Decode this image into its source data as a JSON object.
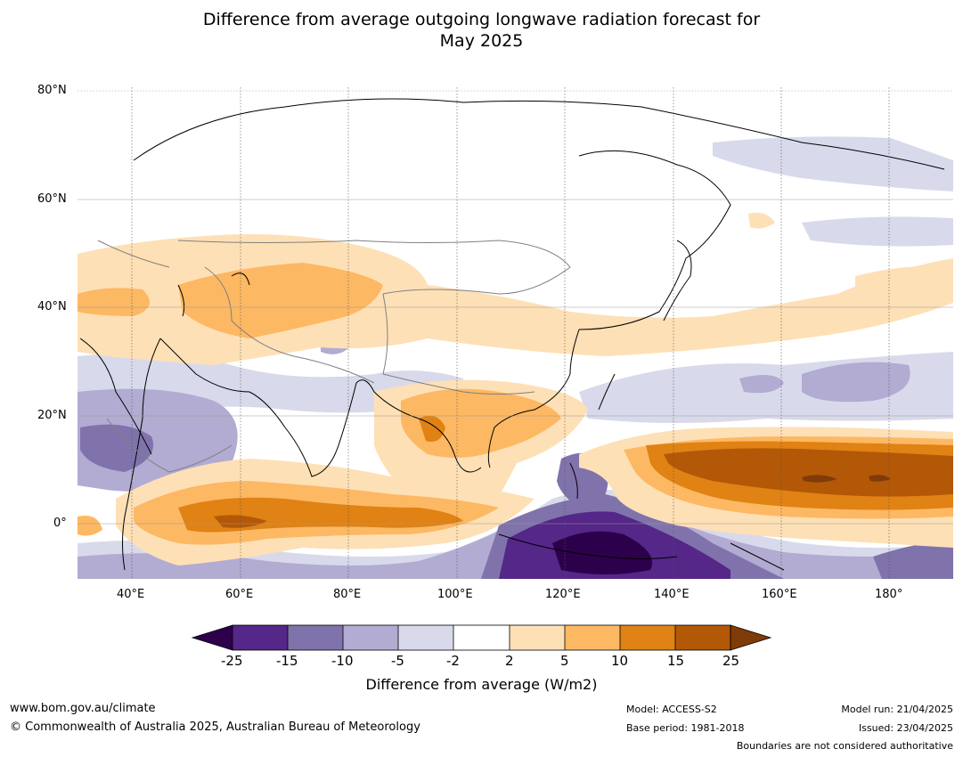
{
  "title_line1": "Difference from average outgoing longwave radiation forecast for",
  "title_line2": "May 2025",
  "map": {
    "lat_labels": [
      "80°N",
      "60°N",
      "40°N",
      "20°N",
      "0°"
    ],
    "lon_labels": [
      "40°E",
      "60°E",
      "80°E",
      "100°E",
      "120°E",
      "140°E",
      "160°E",
      "180°"
    ]
  },
  "colorbar": {
    "ticks": [
      "-25",
      "-15",
      "-10",
      "-5",
      "-2",
      "2",
      "5",
      "10",
      "15",
      "25"
    ],
    "label": "Difference from average (W/m2)",
    "colors": {
      "below_min": "#2d004b",
      "bins": [
        "#542788",
        "#8073ac",
        "#b2abd2",
        "#d8daeb",
        "#ffffff",
        "#fee0b6",
        "#fdb863",
        "#e08214",
        "#b35806"
      ],
      "above_max": "#7f3b08"
    }
  },
  "footer": {
    "website": "www.bom.gov.au/climate",
    "copyright": "© Commonwealth of Australia 2025, Australian Bureau of Meteorology",
    "model": "Model: ACCESS-S2",
    "base_period": "Base period: 1981-2018",
    "model_run": "Model run: 21/04/2025",
    "issued": "Issued: 23/04/2025",
    "disclaimer": "Boundaries are not considered authoritative"
  }
}
